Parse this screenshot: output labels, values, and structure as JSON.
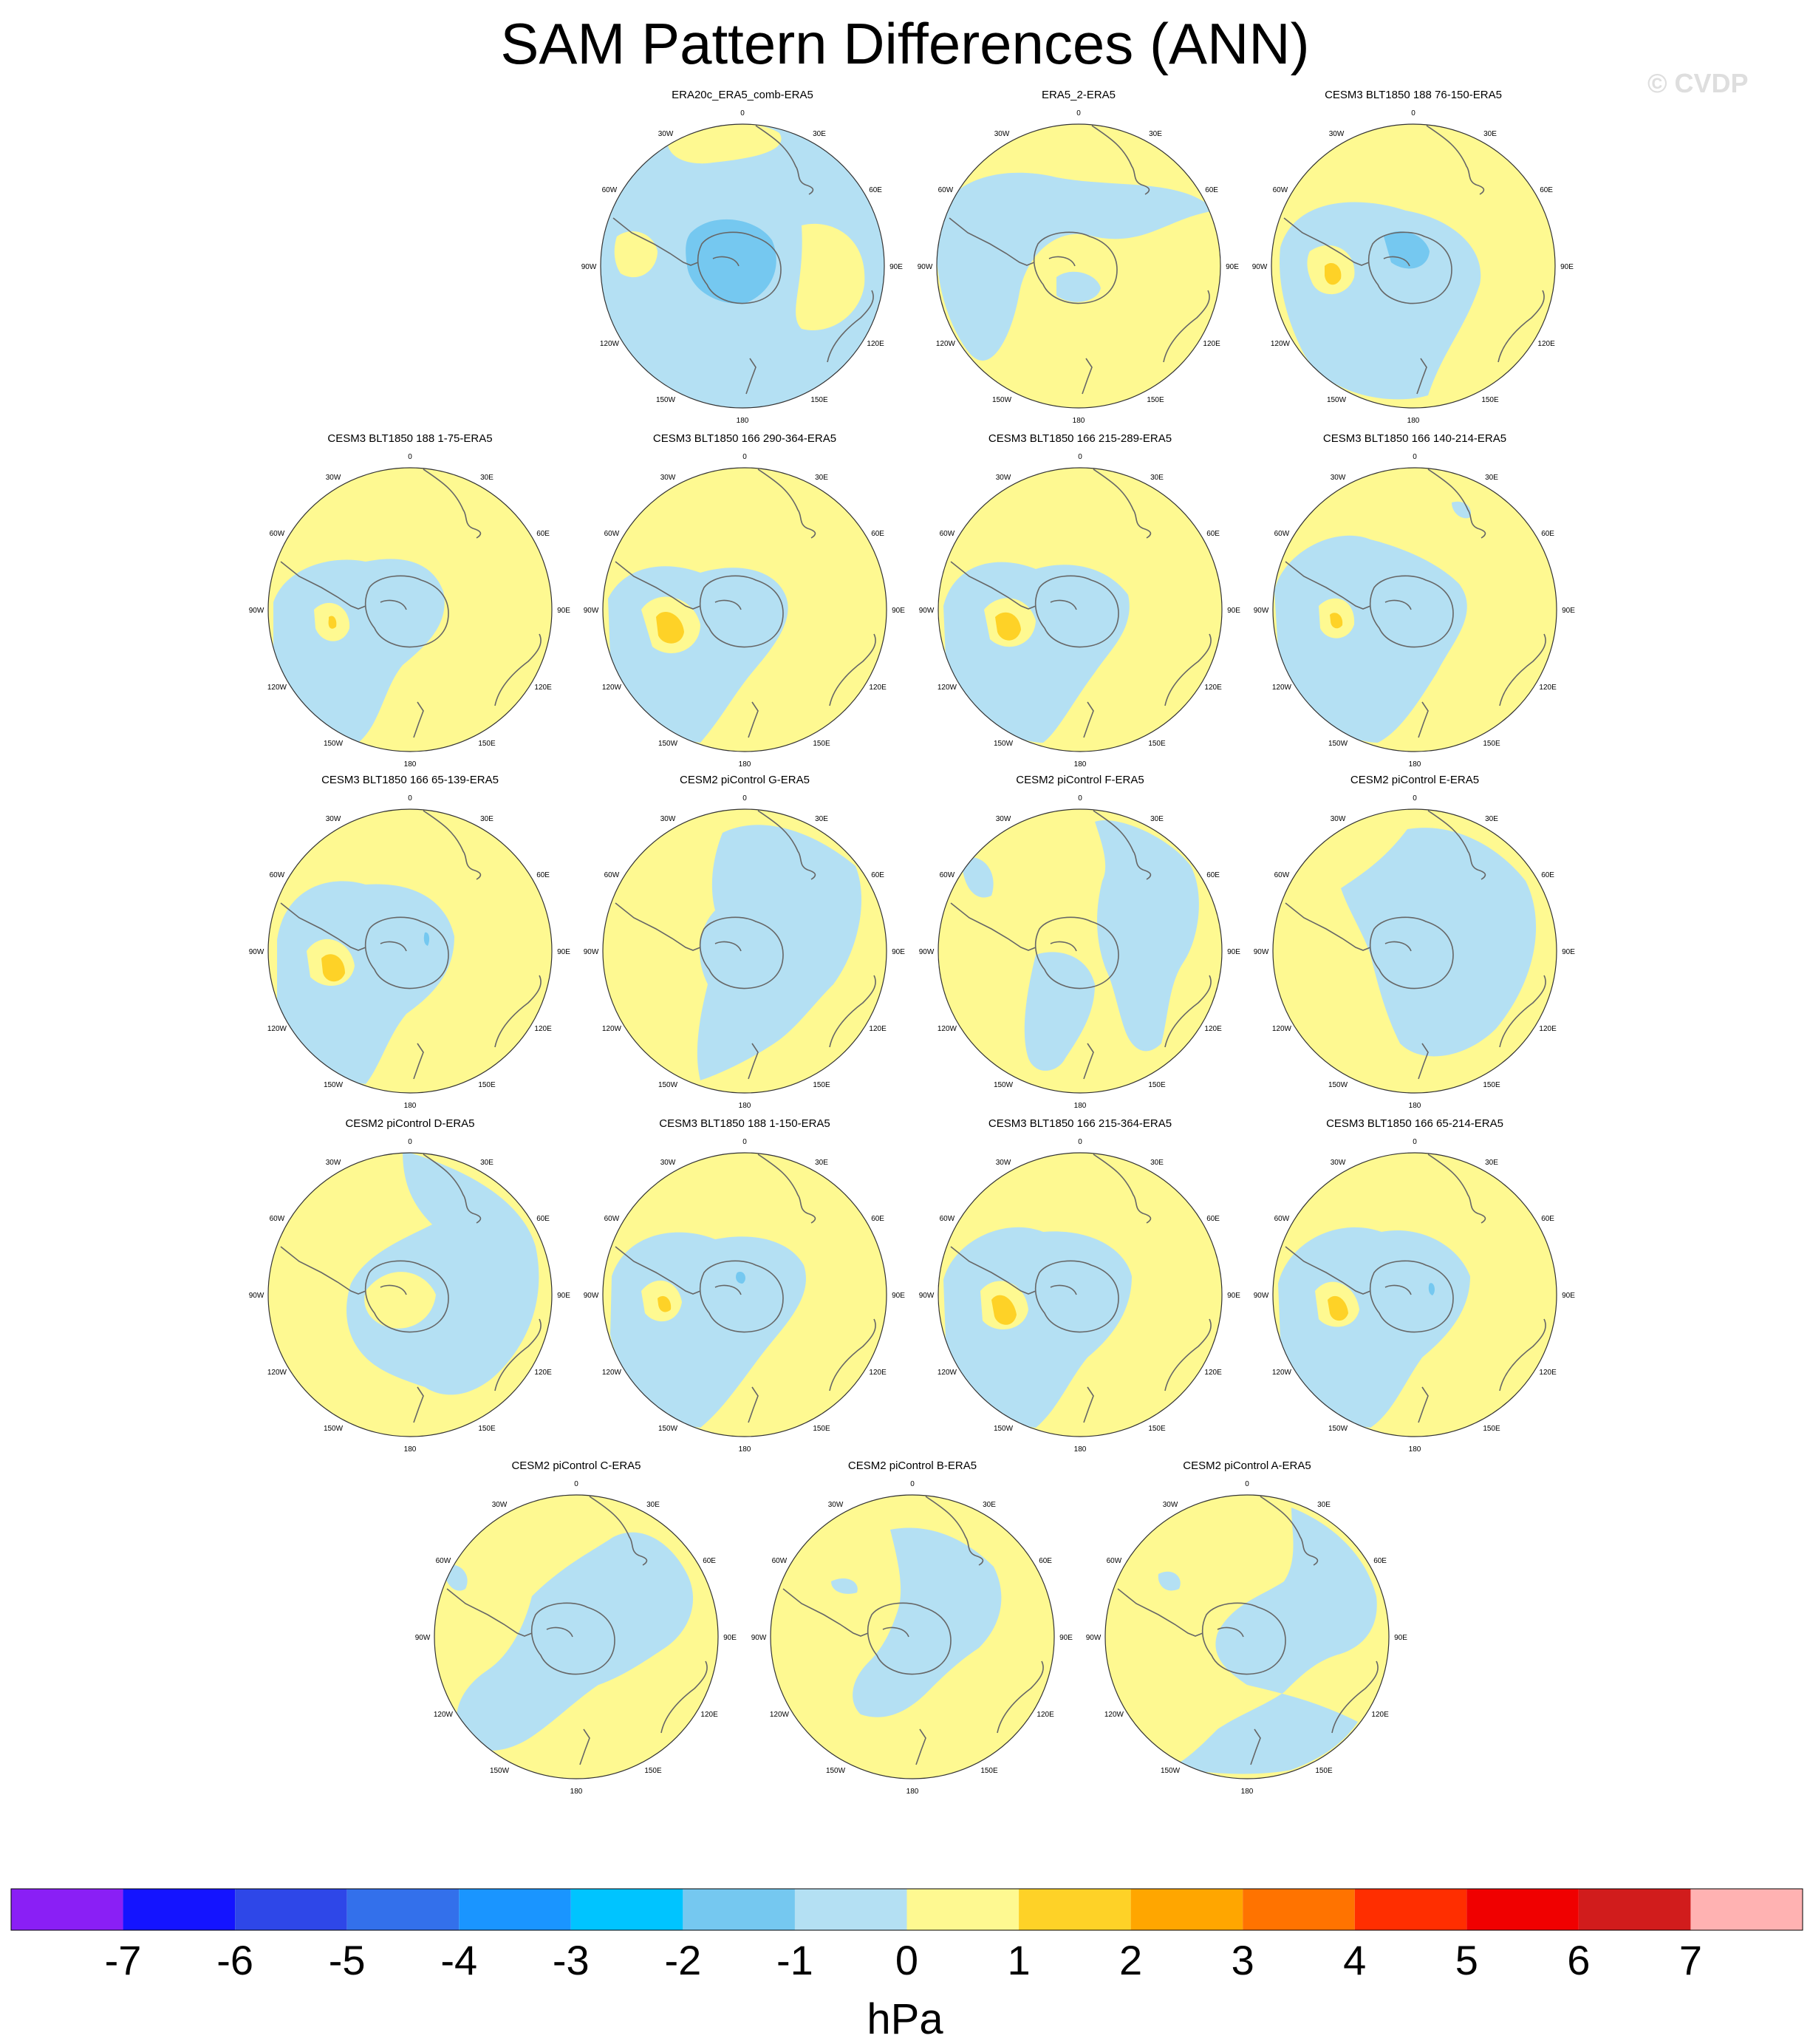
{
  "title": "SAM Pattern Differences (ANN)",
  "watermark": "© CVDP",
  "lon_labels": [
    "0",
    "30E",
    "60E",
    "90E",
    "120E",
    "150E",
    "180",
    "150W",
    "120W",
    "90W",
    "60W",
    "30W"
  ],
  "colorbar": {
    "unit": "hPa",
    "tick_labels": [
      "-7",
      "-6",
      "-5",
      "-4",
      "-3",
      "-2",
      "-1",
      "0",
      "1",
      "2",
      "3",
      "4",
      "5",
      "6",
      "7"
    ],
    "colors": [
      "#8a1ff5",
      "#1414ff",
      "#2e47e8",
      "#3370eb",
      "#1a95ff",
      "#00c4ff",
      "#75c8f0",
      "#b4e0f3",
      "#fef991",
      "#fed227",
      "#ffa600",
      "#ff7300",
      "#ff2e00",
      "#f00000",
      "#d11c1c",
      "#ffb2b2"
    ]
  },
  "panels": [
    {
      "title": "ERA20c_ERA5_comb-ERA5"
    },
    {
      "title": "ERA5_2-ERA5"
    },
    {
      "title": "CESM3 BLT1850 188 76-150-ERA5"
    },
    {
      "title": "CESM3 BLT1850 188 1-75-ERA5"
    },
    {
      "title": "CESM3 BLT1850 166 290-364-ERA5"
    },
    {
      "title": "CESM3 BLT1850 166 215-289-ERA5"
    },
    {
      "title": "CESM3 BLT1850 166 140-214-ERA5"
    },
    {
      "title": "CESM3 BLT1850 166 65-139-ERA5"
    },
    {
      "title": "CESM2 piControl G-ERA5"
    },
    {
      "title": "CESM2 piControl F-ERA5"
    },
    {
      "title": "CESM2 piControl E-ERA5"
    },
    {
      "title": "CESM2 piControl D-ERA5"
    },
    {
      "title": "CESM3 BLT1850 188 1-150-ERA5"
    },
    {
      "title": "CESM3 BLT1850 166 215-364-ERA5"
    },
    {
      "title": "CESM3 BLT1850 166 65-214-ERA5"
    },
    {
      "title": "CESM2 piControl C-ERA5"
    },
    {
      "title": "CESM2 piControl B-ERA5"
    },
    {
      "title": "CESM2 piControl A-ERA5"
    }
  ]
}
